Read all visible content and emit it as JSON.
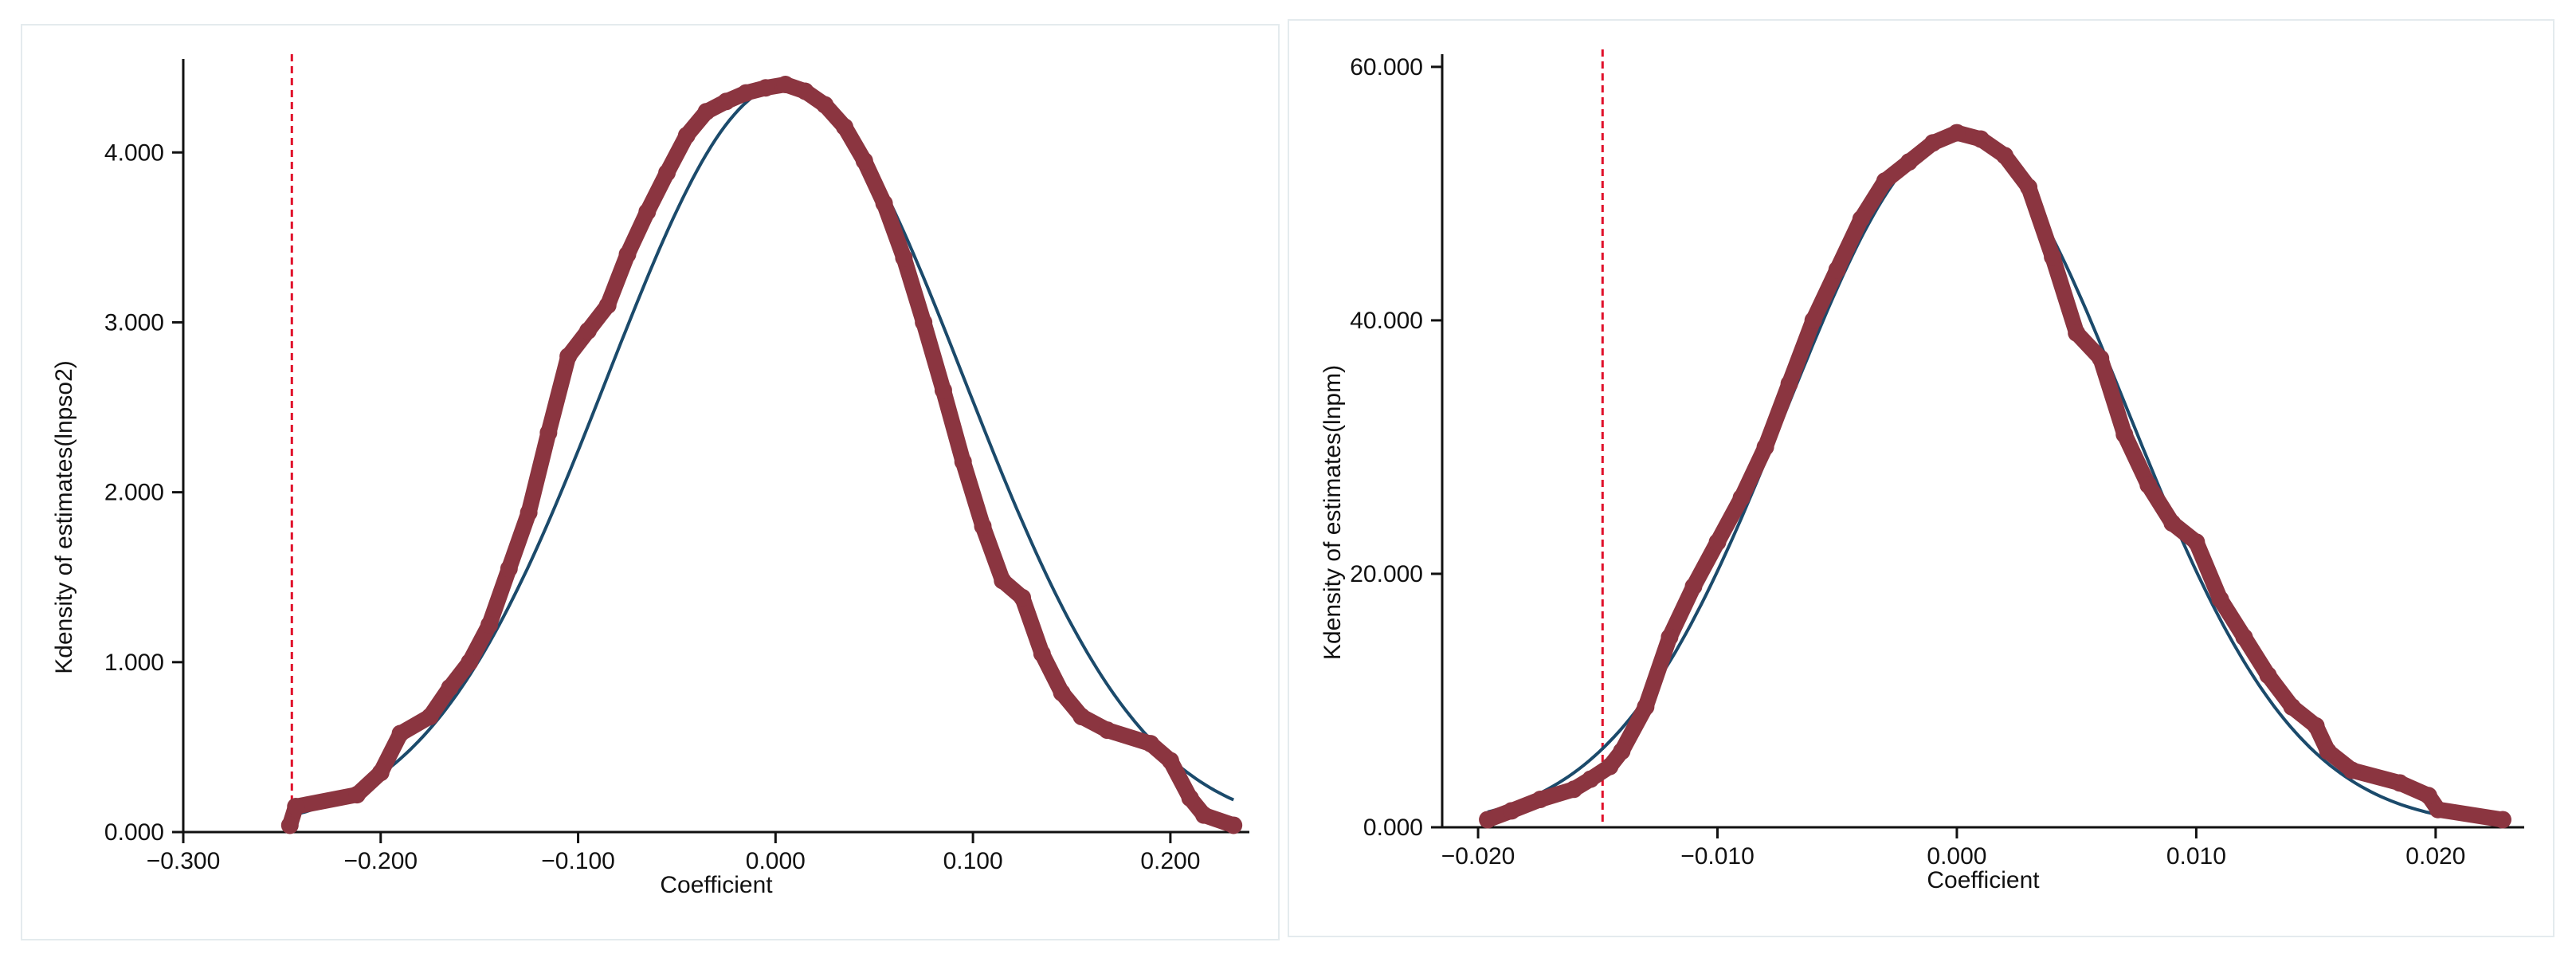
{
  "chart_data": [
    {
      "type": "scatter",
      "xlabel": "Coefficient",
      "ylabel": "Kdensity of estimates(lnpso2)",
      "xlim": [
        -0.3,
        0.24
      ],
      "ylim": [
        0,
        4.55
      ],
      "xticks": [
        -0.3,
        -0.2,
        -0.1,
        0.0,
        0.1,
        0.2
      ],
      "xtick_labels": [
        "−0.300",
        "−0.200",
        "−0.100",
        "0.000",
        "0.100",
        "0.200"
      ],
      "yticks": [
        0,
        1,
        2,
        3,
        4
      ],
      "ytick_labels": [
        "0.000",
        "1.000",
        "2.000",
        "3.000",
        "4.000"
      ],
      "reference_line_x": -0.245,
      "normal_curve": {
        "mean": 0.005,
        "sd": 0.0905,
        "peak": 4.4,
        "x_range": [
          -0.245,
          0.232
        ]
      },
      "kernel_density_points": {
        "x": [
          -0.246,
          -0.243,
          -0.212,
          -0.2,
          -0.19,
          -0.175,
          -0.165,
          -0.155,
          -0.145,
          -0.135,
          -0.125,
          -0.115,
          -0.105,
          -0.095,
          -0.085,
          -0.075,
          -0.065,
          -0.055,
          -0.045,
          -0.035,
          -0.025,
          -0.015,
          -0.005,
          0.005,
          0.015,
          0.025,
          0.035,
          0.045,
          0.055,
          0.065,
          0.075,
          0.085,
          0.095,
          0.105,
          0.115,
          0.125,
          0.135,
          0.145,
          0.155,
          0.168,
          0.19,
          0.2,
          0.21,
          0.217,
          0.232
        ],
        "y": [
          0.04,
          0.15,
          0.22,
          0.35,
          0.58,
          0.68,
          0.85,
          1.0,
          1.22,
          1.55,
          1.88,
          2.35,
          2.8,
          2.95,
          3.1,
          3.4,
          3.65,
          3.88,
          4.1,
          4.24,
          4.3,
          4.35,
          4.38,
          4.4,
          4.36,
          4.28,
          4.15,
          3.95,
          3.7,
          3.38,
          3.0,
          2.6,
          2.18,
          1.8,
          1.48,
          1.38,
          1.05,
          0.82,
          0.68,
          0.6,
          0.52,
          0.42,
          0.2,
          0.1,
          0.04
        ]
      }
    },
    {
      "type": "scatter",
      "xlabel": "Coefficient",
      "ylabel": "Kdensity of estimates(lnpm)",
      "xlim": [
        -0.0215,
        0.0237
      ],
      "ylim": [
        0,
        61
      ],
      "xticks": [
        -0.02,
        -0.01,
        0.0,
        0.01,
        0.02
      ],
      "xtick_labels": [
        "−0.020",
        "−0.010",
        "0.000",
        "0.010",
        "0.020"
      ],
      "yticks": [
        0,
        20,
        40,
        60
      ],
      "ytick_labels": [
        "0.000",
        "20.000",
        "40.000",
        "60.000"
      ],
      "reference_line_x": -0.0148,
      "normal_curve": {
        "mean": 0.0,
        "sd": 0.0071,
        "peak": 54.5,
        "x_range": [
          -0.0196,
          0.0228
        ]
      },
      "kernel_density_points": {
        "x": [
          -0.0196,
          -0.0186,
          -0.0174,
          -0.016,
          -0.0153,
          -0.0145,
          -0.014,
          -0.013,
          -0.012,
          -0.011,
          -0.01,
          -0.009,
          -0.008,
          -0.007,
          -0.006,
          -0.005,
          -0.004,
          -0.003,
          -0.002,
          -0.001,
          0.0,
          0.001,
          0.002,
          0.003,
          0.004,
          0.005,
          0.006,
          0.007,
          0.008,
          0.009,
          0.01,
          0.011,
          0.012,
          0.013,
          0.014,
          0.015,
          0.0155,
          0.0165,
          0.0185,
          0.0197,
          0.0201,
          0.0228
        ],
        "y": [
          0.6,
          1.3,
          2.2,
          3.0,
          3.8,
          4.8,
          6.0,
          9.5,
          15.0,
          19.0,
          22.5,
          26.0,
          30.0,
          35.0,
          40.0,
          44.0,
          48.0,
          51.0,
          52.5,
          54.0,
          54.8,
          54.3,
          53.0,
          50.5,
          45.0,
          39.0,
          37.0,
          31.0,
          27.0,
          24.0,
          22.5,
          18.0,
          15.0,
          12.0,
          9.5,
          8.0,
          6.0,
          4.5,
          3.5,
          2.5,
          1.4,
          0.6
        ]
      }
    }
  ]
}
